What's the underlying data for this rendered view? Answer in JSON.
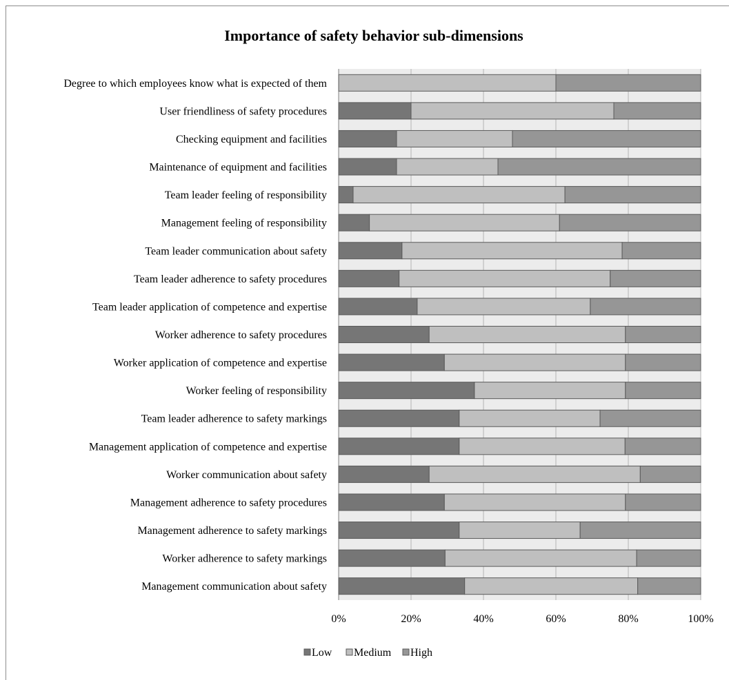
{
  "chart_data": {
    "type": "bar",
    "orientation": "horizontal",
    "stacked": "percent",
    "title": "Importance of safety behavior sub-dimensions",
    "xlabel": "",
    "ylabel": "",
    "xlim": [
      0,
      100
    ],
    "x_ticks": [
      "0%",
      "20%",
      "40%",
      "60%",
      "80%",
      "100%"
    ],
    "x_tick_values": [
      0,
      20,
      40,
      60,
      80,
      100
    ],
    "grid": true,
    "legend_position": "bottom",
    "categories": [
      "Degree to which employees know what is expected of them",
      "User friendliness of safety procedures",
      "Checking equipment and facilities",
      "Maintenance of equipment and facilities",
      "Team leader feeling of responsibility",
      "Management feeling of responsibility",
      "Team leader communication about safety",
      "Team leader adherence to safety procedures",
      "Team leader application of competence and expertise",
      "Worker adherence to safety procedures",
      "Worker application of competence and expertise",
      "Worker feeling of responsibility",
      "Team leader adherence to safety markings",
      "Management application of competence and expertise",
      "Worker communication about safety",
      "Management adherence to safety procedures",
      "Management adherence to safety markings",
      "Worker adherence to safety markings",
      "Management communication about safety"
    ],
    "series": [
      {
        "name": "Low",
        "color": "#767676",
        "values": [
          0,
          20,
          16,
          16,
          4,
          8.5,
          17.5,
          16.7,
          21.7,
          25,
          29.2,
          37.5,
          33.3,
          33.3,
          25,
          29.2,
          33.3,
          29.4,
          34.8
        ]
      },
      {
        "name": "Medium",
        "color": "#bfbfbf",
        "values": [
          60,
          56,
          32,
          28,
          58.5,
          52.5,
          60.8,
          58.3,
          47.8,
          54.2,
          50,
          41.7,
          38.9,
          45.8,
          58.3,
          50,
          33.4,
          52.9,
          47.8
        ]
      },
      {
        "name": "High",
        "color": "#969696",
        "values": [
          40,
          24,
          52,
          56,
          37.5,
          39,
          21.7,
          25,
          30.5,
          20.8,
          20.8,
          20.8,
          27.8,
          20.9,
          16.7,
          20.8,
          33.3,
          17.7,
          17.4
        ]
      }
    ]
  }
}
